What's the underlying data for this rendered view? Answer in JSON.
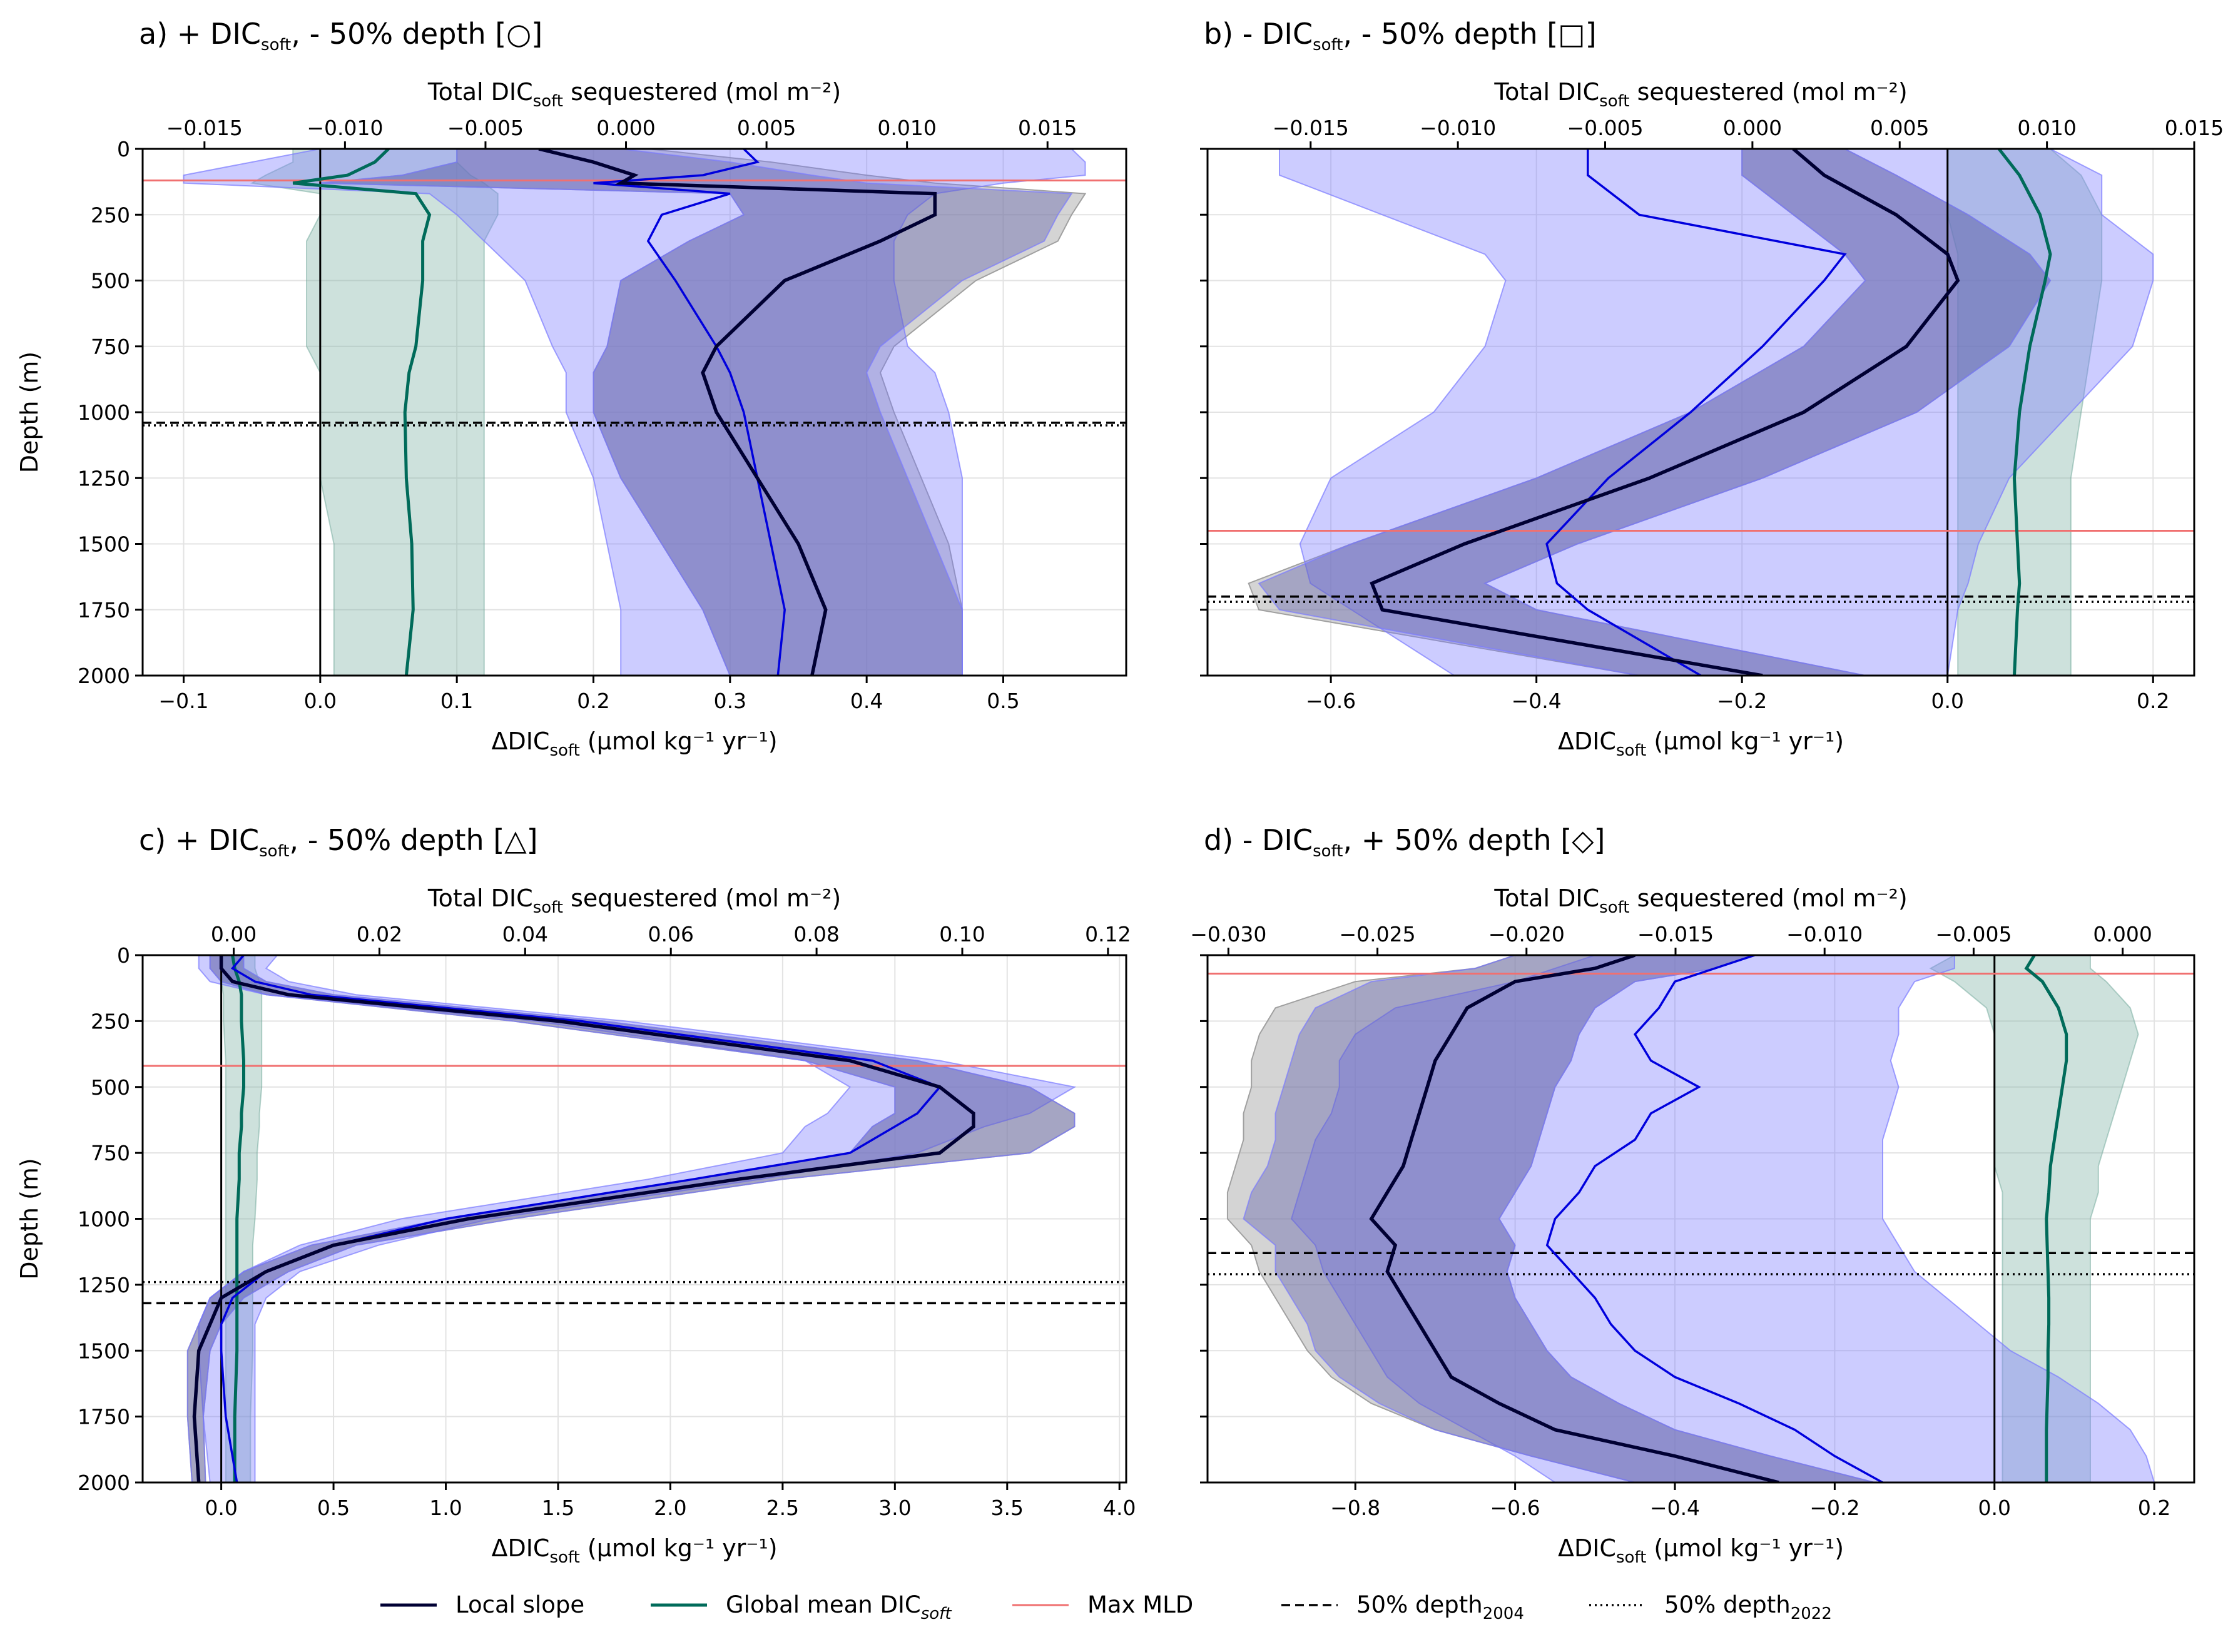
{
  "legend": [
    {
      "label": "Local slope",
      "color": "#000033",
      "style": "solid"
    },
    {
      "label": "Global mean DIC",
      "sub": "soft",
      "sub_italic": true,
      "color": "#006b5a",
      "style": "solid"
    },
    {
      "label": "Max MLD",
      "color": "#f07070",
      "style": "solid"
    },
    {
      "label": "50% depth",
      "sub": "2004",
      "color": "#000000",
      "style": "dashed"
    },
    {
      "label": "50% depth",
      "sub": "2022",
      "color": "#000000",
      "style": "dotted"
    }
  ],
  "colors": {
    "local_slope": "#000033",
    "global_mean": "#006b5a",
    "max_mld": "#f07070",
    "blue_series": "#0000dd",
    "blue_band": "#7a7aff",
    "grey_band": "#a0a0a0",
    "teal_band": "#70a89a"
  },
  "chart_data": [
    {
      "id": "a",
      "type": "line",
      "title": {
        "pre": "a) + DIC",
        "sub": "soft",
        "post": ", - 50% depth [○]"
      },
      "ylabel": "Depth (m)",
      "xlabel": {
        "pre": "ΔDIC",
        "sub": "soft",
        "post": " (µmol kg⁻¹ yr⁻¹)"
      },
      "top_xlabel": {
        "pre": "Total DIC",
        "sub": "soft",
        "post": " sequestered (mol m⁻²)"
      },
      "ylim": [
        2000,
        0
      ],
      "yticks": [
        "0",
        "250",
        "500",
        "750",
        "1000",
        "1250",
        "1500",
        "1750",
        "2000"
      ],
      "xlim": [
        -0.13,
        0.59
      ],
      "xticks": [
        "−0.1",
        "0.0",
        "0.1",
        "0.2",
        "0.3",
        "0.4",
        "0.5"
      ],
      "top_xlim": [
        -0.0172,
        0.0178
      ],
      "top_xticks": [
        "−0.015",
        "−0.010",
        "−0.005",
        "0.000",
        "0.005",
        "0.010",
        "0.015"
      ],
      "max_mld": 120,
      "depth50_2004": 1040,
      "depth50_2022": 1050,
      "depth": [
        0,
        50,
        100,
        130,
        170,
        250,
        350,
        500,
        750,
        850,
        1000,
        1250,
        1500,
        1750,
        2000
      ],
      "local_slope": [
        0.16,
        0.2,
        0.23,
        0.22,
        0.45,
        0.45,
        0.41,
        0.34,
        0.29,
        0.28,
        0.29,
        0.32,
        0.35,
        0.37,
        0.36
      ],
      "local_slope_band": {
        "low": [
          0.1,
          0.1,
          0.06,
          0.0,
          0.3,
          0.31,
          0.27,
          0.22,
          0.21,
          0.2,
          0.2,
          0.22,
          0.25,
          0.28,
          0.3
        ],
        "high": [
          0.22,
          0.3,
          0.36,
          0.4,
          0.55,
          0.54,
          0.53,
          0.47,
          0.41,
          0.4,
          0.41,
          0.43,
          0.45,
          0.47,
          0.47
        ]
      },
      "sequestered": [
        0.31,
        0.32,
        0.28,
        0.2,
        0.3,
        0.25,
        0.24,
        0.26,
        0.29,
        0.3,
        0.31,
        0.32,
        0.33,
        0.34,
        0.335
      ],
      "sequestered_band": {
        "low": [
          0.0,
          -0.05,
          -0.1,
          -0.1,
          0.08,
          0.1,
          0.12,
          0.15,
          0.17,
          0.18,
          0.18,
          0.2,
          0.21,
          0.22,
          0.22
        ],
        "high": [
          0.55,
          0.56,
          0.56,
          0.5,
          0.45,
          0.43,
          0.42,
          0.42,
          0.43,
          0.45,
          0.46,
          0.47,
          0.47,
          0.47,
          0.47
        ]
      },
      "global_mean": [
        0.05,
        0.04,
        0.02,
        -0.02,
        0.07,
        0.08,
        0.075,
        0.075,
        0.07,
        0.065,
        0.062,
        0.063,
        0.067,
        0.068,
        0.063
      ],
      "global_mean_band": {
        "low": [
          -0.02,
          -0.02,
          -0.04,
          -0.05,
          0.0,
          0.0,
          -0.01,
          -0.01,
          -0.01,
          0.0,
          0.0,
          0.0,
          0.01,
          0.01,
          0.01
        ],
        "high": [
          0.1,
          0.1,
          0.11,
          0.12,
          0.13,
          0.13,
          0.12,
          0.12,
          0.12,
          0.12,
          0.12,
          0.12,
          0.12,
          0.12,
          0.12
        ]
      },
      "grey_band": {
        "low": [
          0.1,
          0.1,
          0.06,
          0.0,
          0.3,
          0.31,
          0.27,
          0.22,
          0.21,
          0.2,
          0.2,
          0.22,
          0.25,
          0.28,
          0.3
        ],
        "high": [
          0.24,
          0.33,
          0.4,
          0.45,
          0.56,
          0.55,
          0.54,
          0.48,
          0.42,
          0.41,
          0.42,
          0.44,
          0.46,
          0.47,
          0.47
        ]
      }
    },
    {
      "id": "b",
      "type": "line",
      "title": {
        "pre": "b) - DIC",
        "sub": "soft",
        "post": ", - 50% depth [□]"
      },
      "ylabel": "",
      "xlabel": {
        "pre": "ΔDIC",
        "sub": "soft",
        "post": " (µmol kg⁻¹ yr⁻¹)"
      },
      "top_xlabel": {
        "pre": "Total DIC",
        "sub": "soft",
        "post": " sequestered (mol m⁻²)"
      },
      "ylim": [
        2000,
        0
      ],
      "yticks": [
        "0",
        "250",
        "500",
        "750",
        "1000",
        "1250",
        "1500",
        "1750",
        "2000"
      ],
      "xlim": [
        -0.72,
        0.24
      ],
      "xticks": [
        "−0.6",
        "−0.4",
        "−0.2",
        "0.0",
        "0.2"
      ],
      "top_xlim": [
        -0.0185,
        0.015
      ],
      "top_xticks": [
        "−0.015",
        "−0.010",
        "−0.005",
        "0.000",
        "0.005",
        "0.010",
        "0.015"
      ],
      "max_mld": 1450,
      "depth50_2004": 1700,
      "depth50_2022": 1720,
      "depth": [
        0,
        100,
        250,
        400,
        500,
        750,
        1000,
        1250,
        1500,
        1650,
        1750,
        2000
      ],
      "local_slope": [
        -0.15,
        -0.12,
        -0.05,
        0.0,
        0.01,
        -0.04,
        -0.14,
        -0.29,
        -0.47,
        -0.56,
        -0.55,
        -0.18
      ],
      "local_slope_band": {
        "low": [
          -0.2,
          -0.2,
          -0.15,
          -0.1,
          -0.08,
          -0.14,
          -0.25,
          -0.4,
          -0.58,
          -0.67,
          -0.65,
          -0.3
        ],
        "high": [
          -0.1,
          -0.05,
          0.02,
          0.08,
          0.1,
          0.06,
          -0.03,
          -0.18,
          -0.36,
          -0.45,
          -0.4,
          -0.08
        ]
      },
      "sequestered": [
        -0.35,
        -0.35,
        -0.3,
        -0.1,
        -0.12,
        -0.18,
        -0.25,
        -0.33,
        -0.39,
        -0.38,
        -0.35,
        -0.24
      ],
      "sequestered_band": {
        "low": [
          -0.65,
          -0.65,
          -0.55,
          -0.45,
          -0.43,
          -0.45,
          -0.5,
          -0.6,
          -0.63,
          -0.62,
          -0.58,
          -0.48
        ],
        "high": [
          0.1,
          0.15,
          0.15,
          0.2,
          0.2,
          0.18,
          0.12,
          0.06,
          0.03,
          0.02,
          0.01,
          0.0
        ]
      },
      "global_mean": [
        0.05,
        0.07,
        0.09,
        0.1,
        0.095,
        0.08,
        0.07,
        0.065,
        0.068,
        0.07,
        0.068,
        0.065
      ],
      "global_mean_band": {
        "low": [
          0.0,
          0.0,
          0.0,
          0.01,
          0.01,
          0.01,
          0.01,
          0.01,
          0.01,
          0.01,
          0.01,
          0.01
        ],
        "high": [
          0.1,
          0.13,
          0.15,
          0.15,
          0.15,
          0.14,
          0.13,
          0.12,
          0.12,
          0.12,
          0.12,
          0.12
        ]
      },
      "grey_band": {
        "low": [
          -0.2,
          -0.2,
          -0.15,
          -0.1,
          -0.08,
          -0.14,
          -0.25,
          -0.4,
          -0.58,
          -0.68,
          -0.67,
          -0.3
        ],
        "high": [
          -0.1,
          -0.05,
          0.02,
          0.08,
          0.1,
          0.06,
          -0.03,
          -0.18,
          -0.36,
          -0.45,
          -0.4,
          -0.08
        ]
      }
    },
    {
      "id": "c",
      "type": "line",
      "title": {
        "pre": "c) + DIC",
        "sub": "soft",
        "post": ", - 50% depth [△]"
      },
      "ylabel": "Depth (m)",
      "xlabel": {
        "pre": "ΔDIC",
        "sub": "soft",
        "post": " (µmol kg⁻¹ yr⁻¹)"
      },
      "top_xlabel": {
        "pre": "Total DIC",
        "sub": "soft",
        "post": " sequestered (mol m⁻²)"
      },
      "ylim": [
        2000,
        0
      ],
      "yticks": [
        "0",
        "250",
        "500",
        "750",
        "1000",
        "1250",
        "1500",
        "1750",
        "2000"
      ],
      "xlim": [
        -0.35,
        4.03
      ],
      "xticks": [
        "0.0",
        "0.5",
        "1.0",
        "1.5",
        "2.0",
        "2.5",
        "3.0",
        "3.5",
        "4.0"
      ],
      "top_xlim": [
        -0.0125,
        0.1225
      ],
      "top_xticks": [
        "0.00",
        "0.02",
        "0.04",
        "0.06",
        "0.08",
        "0.10",
        "0.12"
      ],
      "max_mld": 420,
      "depth50_2004": 1320,
      "depth50_2022": 1240,
      "depth": [
        0,
        50,
        100,
        150,
        250,
        400,
        500,
        600,
        650,
        750,
        850,
        1000,
        1100,
        1200,
        1300,
        1400,
        1500,
        1750,
        2000
      ],
      "local_slope": [
        0.0,
        0.0,
        0.05,
        0.3,
        1.5,
        2.8,
        3.2,
        3.35,
        3.35,
        3.2,
        2.3,
        1.1,
        0.5,
        0.2,
        0.0,
        -0.05,
        -0.1,
        -0.12,
        -0.1
      ],
      "local_slope_band": {
        "low": [
          -0.05,
          -0.05,
          0.0,
          0.2,
          1.3,
          2.6,
          3.0,
          3.0,
          2.9,
          2.8,
          2.1,
          1.0,
          0.4,
          0.1,
          -0.05,
          -0.1,
          -0.15,
          -0.15,
          -0.13
        ],
        "high": [
          0.1,
          0.1,
          0.2,
          0.5,
          1.7,
          3.1,
          3.6,
          3.8,
          3.8,
          3.6,
          2.5,
          1.3,
          0.6,
          0.3,
          0.1,
          0.0,
          -0.05,
          -0.08,
          -0.07
        ]
      },
      "sequestered": [
        0.1,
        0.05,
        0.15,
        0.4,
        1.6,
        2.9,
        3.2,
        3.1,
        3.0,
        2.8,
        2.1,
        1.0,
        0.5,
        0.2,
        0.05,
        0.0,
        0.0,
        0.02,
        0.07
      ],
      "sequestered_band": {
        "low": [
          -0.1,
          -0.1,
          -0.05,
          0.2,
          1.4,
          2.6,
          2.8,
          2.7,
          2.6,
          2.5,
          1.9,
          0.8,
          0.35,
          0.1,
          -0.05,
          -0.1,
          -0.1,
          -0.08,
          -0.05
        ],
        "high": [
          0.25,
          0.2,
          0.3,
          0.6,
          1.8,
          3.2,
          3.8,
          3.6,
          3.4,
          3.1,
          2.4,
          1.2,
          0.7,
          0.35,
          0.2,
          0.15,
          0.15,
          0.15,
          0.15
        ]
      },
      "global_mean": [
        0.05,
        0.06,
        0.08,
        0.09,
        0.09,
        0.1,
        0.1,
        0.09,
        0.09,
        0.08,
        0.08,
        0.07,
        0.07,
        0.07,
        0.07,
        0.07,
        0.07,
        0.06,
        0.06
      ],
      "global_mean_band": {
        "low": [
          0.0,
          0.0,
          0.0,
          0.01,
          0.01,
          0.02,
          0.02,
          0.02,
          0.02,
          0.02,
          0.02,
          0.02,
          0.02,
          0.02,
          0.02,
          0.02,
          0.02,
          0.02,
          0.02
        ],
        "high": [
          0.15,
          0.15,
          0.17,
          0.18,
          0.18,
          0.18,
          0.18,
          0.17,
          0.17,
          0.16,
          0.16,
          0.15,
          0.14,
          0.14,
          0.14,
          0.14,
          0.14,
          0.13,
          0.13
        ]
      },
      "grey_band": {
        "low": [
          -0.05,
          -0.05,
          0.0,
          0.2,
          1.3,
          2.6,
          3.0,
          3.0,
          2.9,
          2.8,
          2.1,
          1.0,
          0.4,
          0.1,
          -0.05,
          -0.1,
          -0.15,
          -0.15,
          -0.13
        ],
        "high": [
          0.1,
          0.1,
          0.2,
          0.5,
          1.7,
          3.1,
          3.6,
          3.8,
          3.8,
          3.6,
          2.5,
          1.3,
          0.6,
          0.3,
          0.1,
          0.0,
          -0.05,
          -0.08,
          -0.07
        ]
      }
    },
    {
      "id": "d",
      "type": "line",
      "title": {
        "pre": "d) - DIC",
        "sub": "soft",
        "post": ", + 50% depth [◇]"
      },
      "ylabel": "",
      "xlabel": {
        "pre": "ΔDIC",
        "sub": "soft",
        "post": " (µmol kg⁻¹ yr⁻¹)"
      },
      "top_xlabel": {
        "pre": "Total DIC",
        "sub": "soft",
        "post": " sequestered (mol m⁻²)"
      },
      "ylim": [
        2000,
        0
      ],
      "yticks": [
        "0",
        "250",
        "500",
        "750",
        "1000",
        "1250",
        "1500",
        "1750",
        "2000"
      ],
      "xlim": [
        -0.985,
        0.25
      ],
      "xticks": [
        "−0.8",
        "−0.6",
        "−0.4",
        "−0.2",
        "0.0",
        "0.2"
      ],
      "top_xlim": [
        -0.0307,
        0.0024
      ],
      "top_xticks": [
        "−0.030",
        "−0.025",
        "−0.020",
        "−0.015",
        "−0.010",
        "−0.005",
        "0.000"
      ],
      "max_mld": 70,
      "depth50_2004": 1130,
      "depth50_2022": 1210,
      "depth": [
        0,
        50,
        100,
        200,
        300,
        400,
        500,
        600,
        700,
        800,
        900,
        1000,
        1100,
        1200,
        1300,
        1400,
        1500,
        1600,
        1700,
        1800,
        1900,
        2000
      ],
      "local_slope": [
        -0.45,
        -0.5,
        -0.6,
        -0.66,
        -0.68,
        -0.7,
        -0.71,
        -0.72,
        -0.73,
        -0.74,
        -0.76,
        -0.78,
        -0.75,
        -0.76,
        -0.74,
        -0.72,
        -0.7,
        -0.68,
        -0.62,
        -0.55,
        -0.4,
        -0.27
      ],
      "local_slope_band": {
        "low": [
          -0.6,
          -0.65,
          -0.78,
          -0.85,
          -0.87,
          -0.88,
          -0.89,
          -0.9,
          -0.9,
          -0.91,
          -0.93,
          -0.94,
          -0.9,
          -0.9,
          -0.88,
          -0.86,
          -0.85,
          -0.82,
          -0.77,
          -0.7,
          -0.58,
          -0.45
        ],
        "high": [
          -0.3,
          -0.35,
          -0.45,
          -0.5,
          -0.52,
          -0.53,
          -0.55,
          -0.56,
          -0.57,
          -0.58,
          -0.6,
          -0.62,
          -0.6,
          -0.61,
          -0.6,
          -0.58,
          -0.56,
          -0.53,
          -0.47,
          -0.4,
          -0.28,
          -0.15
        ]
      },
      "sequestered": [
        -0.3,
        -0.35,
        -0.4,
        -0.42,
        -0.45,
        -0.43,
        -0.37,
        -0.43,
        -0.45,
        -0.5,
        -0.52,
        -0.55,
        -0.56,
        -0.53,
        -0.5,
        -0.48,
        -0.45,
        -0.4,
        -0.32,
        -0.25,
        -0.2,
        -0.14
      ],
      "sequestered_band": {
        "low": [
          -0.5,
          -0.55,
          -0.6,
          -0.75,
          -0.8,
          -0.82,
          -0.82,
          -0.83,
          -0.85,
          -0.86,
          -0.87,
          -0.88,
          -0.85,
          -0.84,
          -0.82,
          -0.8,
          -0.78,
          -0.76,
          -0.72,
          -0.66,
          -0.6,
          -0.55
        ],
        "high": [
          -0.05,
          -0.05,
          -0.1,
          -0.12,
          -0.12,
          -0.13,
          -0.12,
          -0.13,
          -0.14,
          -0.14,
          -0.14,
          -0.14,
          -0.12,
          -0.1,
          -0.06,
          -0.02,
          0.02,
          0.08,
          0.13,
          0.17,
          0.19,
          0.2
        ]
      },
      "global_mean": [
        0.05,
        0.04,
        0.06,
        0.08,
        0.09,
        0.09,
        0.085,
        0.08,
        0.075,
        0.07,
        0.068,
        0.065,
        0.066,
        0.067,
        0.068,
        0.068,
        0.067,
        0.067,
        0.066,
        0.065,
        0.065,
        0.065
      ],
      "global_mean_band": {
        "low": [
          -0.05,
          -0.08,
          -0.05,
          -0.01,
          0.0,
          0.0,
          0.0,
          0.0,
          0.0,
          0.0,
          0.01,
          0.01,
          0.01,
          0.01,
          0.01,
          0.01,
          0.01,
          0.01,
          0.01,
          0.01,
          0.01,
          0.01
        ],
        "high": [
          0.12,
          0.12,
          0.14,
          0.17,
          0.18,
          0.17,
          0.16,
          0.15,
          0.14,
          0.13,
          0.13,
          0.12,
          0.12,
          0.12,
          0.12,
          0.12,
          0.12,
          0.12,
          0.12,
          0.12,
          0.12,
          0.12
        ]
      },
      "grey_band": {
        "low": [
          -0.6,
          -0.65,
          -0.8,
          -0.9,
          -0.92,
          -0.93,
          -0.93,
          -0.94,
          -0.94,
          -0.95,
          -0.96,
          -0.96,
          -0.93,
          -0.92,
          -0.9,
          -0.88,
          -0.86,
          -0.83,
          -0.78,
          -0.7,
          -0.58,
          -0.45
        ],
        "high": [
          -0.3,
          -0.35,
          -0.45,
          -0.5,
          -0.52,
          -0.53,
          -0.55,
          -0.56,
          -0.57,
          -0.58,
          -0.6,
          -0.62,
          -0.6,
          -0.61,
          -0.6,
          -0.58,
          -0.56,
          -0.53,
          -0.47,
          -0.4,
          -0.28,
          -0.15
        ]
      }
    }
  ]
}
